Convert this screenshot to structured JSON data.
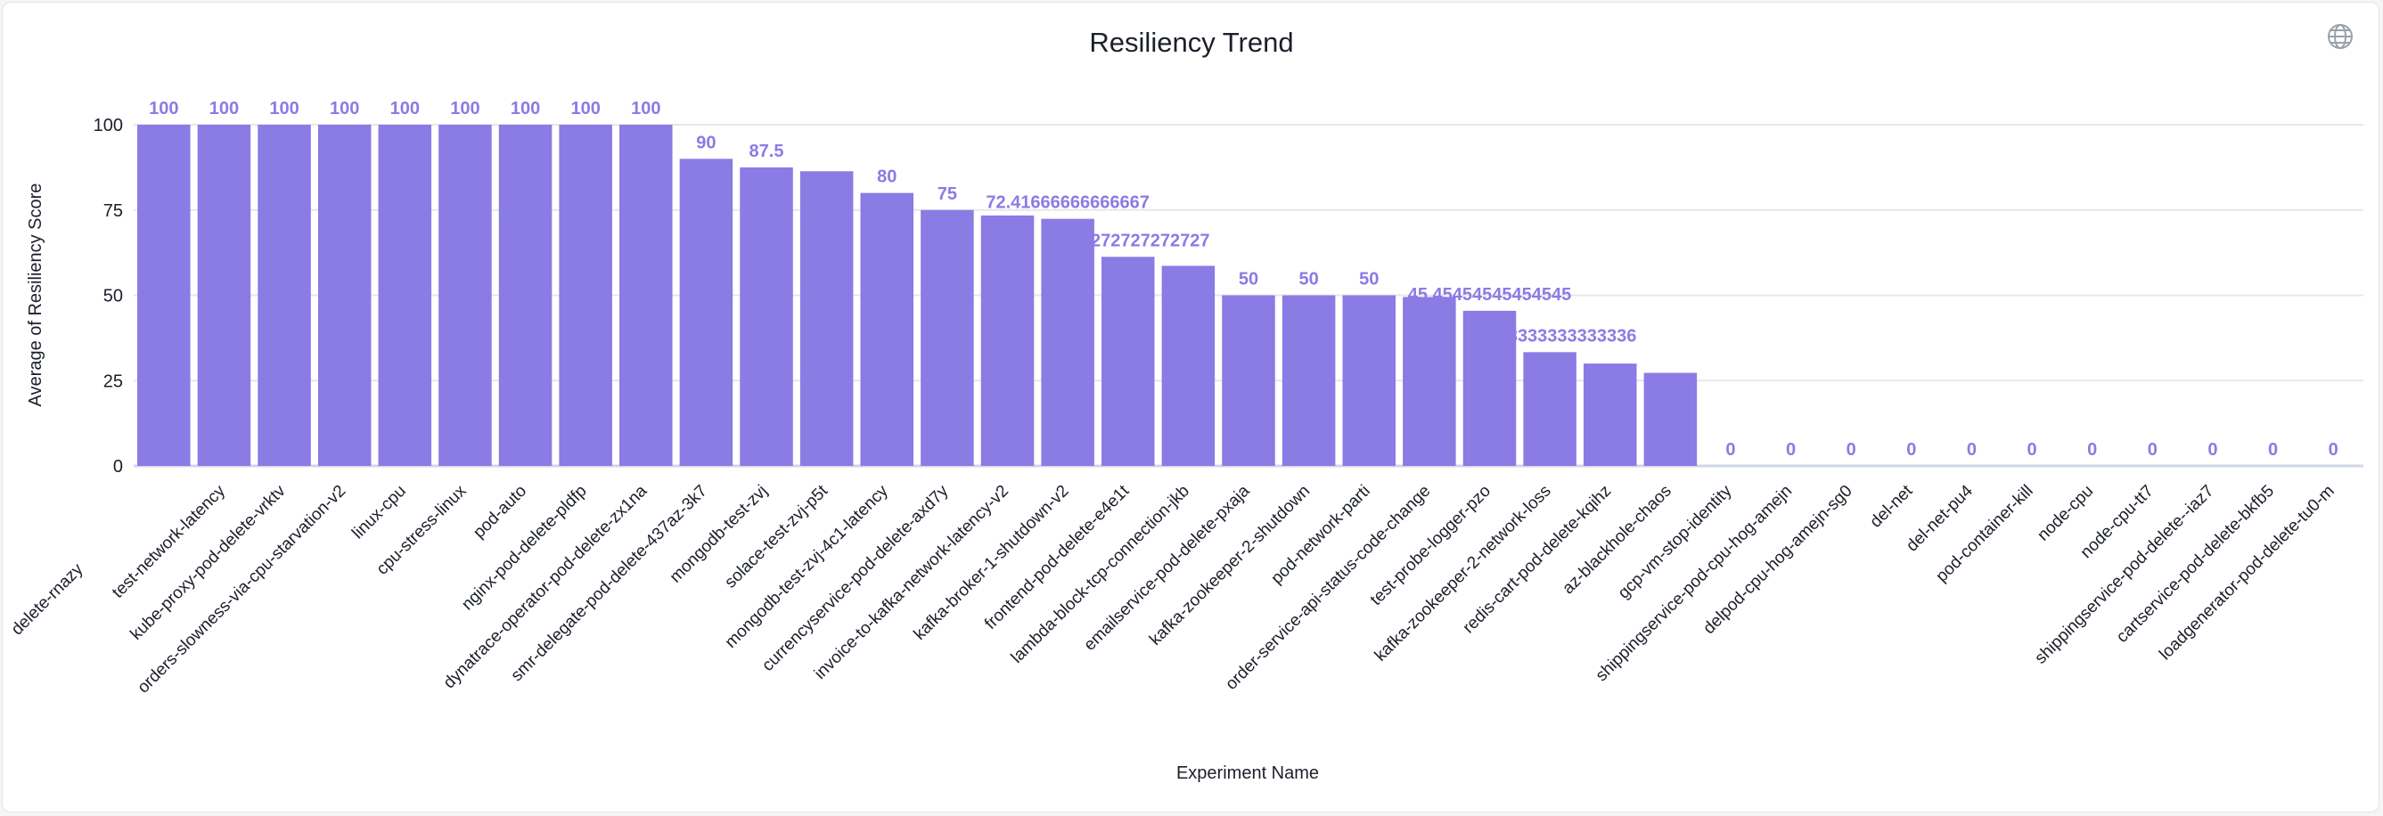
{
  "chart_data": {
    "type": "bar",
    "title": "Resiliency Trend",
    "xlabel": "Experiment Name",
    "ylabel": "Average of Resiliency Score",
    "ylim": [
      0,
      100
    ],
    "yticks": [
      0,
      25,
      50,
      75,
      100
    ],
    "grid": true,
    "bar_color": "#8a7be5",
    "label_color": "#8a7be5",
    "categories": [
      "delete-rnazy",
      "test-network-latency",
      "kube-proxy-pod-delete-vrktv",
      "orders-slowness-via-cpu-starvation-v2",
      "linux-cpu",
      "cpu-stress-linux",
      "pod-auto",
      "nginx-pod-delete-pldfp",
      "dynatrace-operator-pod-delete-zx1na",
      "smr-delegate-pod-delete-437az-3k7",
      "mongodb-test-zvj",
      "solace-test-zvj-p5t",
      "mongodb-test-zvj-4c1-latency",
      "currencyservice-pod-delete-axd7y",
      "invoice-to-kafka-network-latency-v2",
      "kafka-broker-1-shutdown-v2",
      "frontend-pod-delete-e4e1t",
      "lambda-block-tcp-connection-jkb",
      "emailservice-pod-delete-pxaja",
      "kafka-zookeeper-2-shutdown",
      "pod-network-parti",
      "order-service-api-status-code-change",
      "test-probe-logger-pzo",
      "kafka-zookeeper-2-network-loss",
      "redis-cart-pod-delete-kqihz",
      "az-blackhole-chaos",
      "gcp-vm-stop-identity",
      "shippingservice-pod-cpu-hog-amejn",
      "delpod-cpu-hog-amejn-sg0",
      "del-net",
      "del-net-pu4",
      "pod-container-kill",
      "node-cpu",
      "node-cpu-tt7",
      "shippingservice-pod-delete--iaz7",
      "cartservice-pod-delete-bkfb5",
      "loadgenerator-pod-delete-tu0-m"
    ],
    "values": [
      100,
      100,
      100,
      100,
      100,
      100,
      100,
      100,
      100,
      90,
      87.5,
      86.36,
      80,
      75,
      73.4,
      72.41666666666667,
      61.27272727272727,
      58.64,
      50,
      50,
      50,
      49.5,
      45.45454545454545,
      33.333333333333336,
      30,
      27.27,
      0,
      0,
      0,
      0,
      0,
      0,
      0,
      0,
      0,
      0,
      0
    ],
    "data_labels": [
      "100",
      "100",
      "100",
      "100",
      "100",
      "100",
      "100",
      "100",
      "100",
      "90",
      "87.5",
      "",
      "80",
      "75",
      "",
      "72.41666666666667",
      "61.27272727272727",
      "",
      "50",
      "50",
      "50",
      "",
      "45.45454545454545",
      "33.333333333333336",
      "",
      "",
      "0",
      "0",
      "0",
      "0",
      "0",
      "0",
      "0",
      "0",
      "0",
      "0",
      "0"
    ]
  },
  "toolbar": {
    "globe_icon": "globe-icon"
  }
}
